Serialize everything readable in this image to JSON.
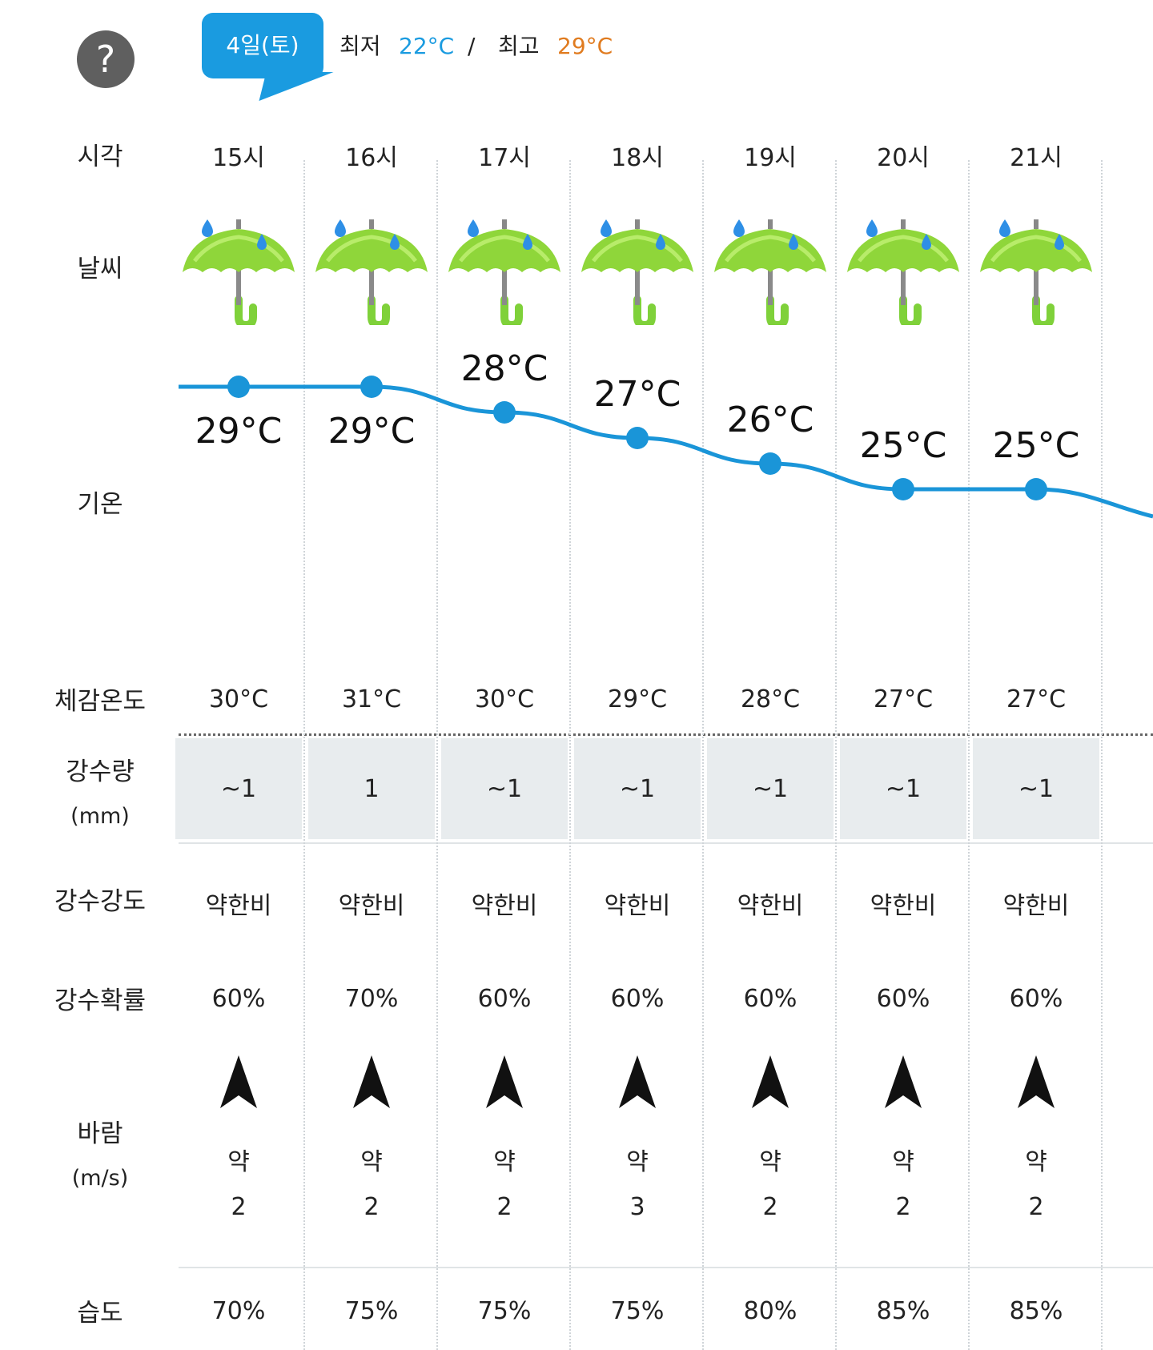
{
  "header": {
    "help_symbol": "?",
    "date": "4일(토)",
    "min_label": "최저",
    "min_value": "22°C",
    "separator": "/",
    "max_label": "최고",
    "max_value": "29°C",
    "colors": {
      "accent_blue": "#1a9be0",
      "max_orange": "#e07b1f",
      "line_blue": "#1a95d8"
    }
  },
  "labels": {
    "time": "시각",
    "weather": "날씨",
    "temperature": "기온",
    "feels_like": "체감온도",
    "precip_amount": "강수량",
    "precip_unit": "(mm)",
    "precip_intensity": "강수강도",
    "precip_prob": "강수확률",
    "wind": "바람",
    "wind_unit": "(m/s)",
    "humidity": "습도"
  },
  "hours": [
    {
      "time": "15시",
      "weather_icon": "rain-umbrella-icon",
      "temp": "29°C",
      "feels": "30°C",
      "precip": "~1",
      "intensity": "약한비",
      "prob": "60%",
      "wind_dir": "north",
      "wind_strength": "약",
      "wind_speed": "2",
      "humidity": "70%"
    },
    {
      "time": "16시",
      "weather_icon": "rain-umbrella-icon",
      "temp": "29°C",
      "feels": "31°C",
      "precip": "1",
      "intensity": "약한비",
      "prob": "70%",
      "wind_dir": "north",
      "wind_strength": "약",
      "wind_speed": "2",
      "humidity": "75%"
    },
    {
      "time": "17시",
      "weather_icon": "rain-umbrella-icon",
      "temp": "28°C",
      "feels": "30°C",
      "precip": "~1",
      "intensity": "약한비",
      "prob": "60%",
      "wind_dir": "north",
      "wind_strength": "약",
      "wind_speed": "2",
      "humidity": "75%"
    },
    {
      "time": "18시",
      "weather_icon": "rain-umbrella-icon",
      "temp": "27°C",
      "feels": "29°C",
      "precip": "~1",
      "intensity": "약한비",
      "prob": "60%",
      "wind_dir": "north",
      "wind_strength": "약",
      "wind_speed": "3",
      "humidity": "75%"
    },
    {
      "time": "19시",
      "weather_icon": "rain-umbrella-icon",
      "temp": "26°C",
      "feels": "28°C",
      "precip": "~1",
      "intensity": "약한비",
      "prob": "60%",
      "wind_dir": "north",
      "wind_strength": "약",
      "wind_speed": "2",
      "humidity": "80%"
    },
    {
      "time": "20시",
      "weather_icon": "rain-umbrella-icon",
      "temp": "25°C",
      "feels": "27°C",
      "precip": "~1",
      "intensity": "약한비",
      "prob": "60%",
      "wind_dir": "north",
      "wind_strength": "약",
      "wind_speed": "2",
      "humidity": "85%"
    },
    {
      "time": "21시",
      "weather_icon": "rain-umbrella-icon",
      "temp": "25°C",
      "feels": "27°C",
      "precip": "~1",
      "intensity": "약한비",
      "prob": "60%",
      "wind_dir": "north",
      "wind_strength": "약",
      "wind_speed": "2",
      "humidity": "85%"
    }
  ],
  "chart_data": {
    "type": "line",
    "categories": [
      "15시",
      "16시",
      "17시",
      "18시",
      "19시",
      "20시",
      "21시"
    ],
    "series": [
      {
        "values": [
          29,
          29,
          28,
          27,
          26,
          25,
          25
        ]
      }
    ],
    "ylabel": "기온"
  }
}
